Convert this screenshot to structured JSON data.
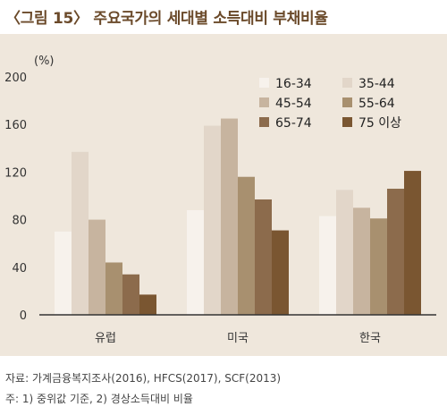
{
  "title": "〈그림 15〉 주요국가의 세대별 소득대비 부채비율",
  "source": "자료: 가계금융복지조사(2016), HFCS(2017), SCF(2013)",
  "note": "주: 1) 중위값 기준, 2) 경상소득대비 비율",
  "colors": {
    "title": "#6b4a2a",
    "panel": "#efe7dc",
    "series": [
      "#f7f2ec",
      "#e2d6c9",
      "#c7b49f",
      "#a8906f",
      "#8c6b4c",
      "#7a5631"
    ]
  },
  "chart_data": {
    "type": "bar",
    "ylabel": "(%)",
    "ylim": [
      0,
      200
    ],
    "yticks": [
      0,
      40,
      80,
      120,
      160,
      200
    ],
    "grid": false,
    "legend_position": "top-right",
    "categories": [
      "유럽",
      "미국",
      "한국"
    ],
    "series": [
      {
        "name": "16-34",
        "values": [
          70,
          88,
          83
        ]
      },
      {
        "name": "35-44",
        "values": [
          137,
          159,
          105
        ]
      },
      {
        "name": "45-54",
        "values": [
          80,
          165,
          90
        ]
      },
      {
        "name": "55-64",
        "values": [
          44,
          116,
          81
        ]
      },
      {
        "name": "65-74",
        "values": [
          34,
          97,
          106
        ]
      },
      {
        "name": "75 이상",
        "values": [
          17,
          71,
          121
        ]
      }
    ]
  }
}
